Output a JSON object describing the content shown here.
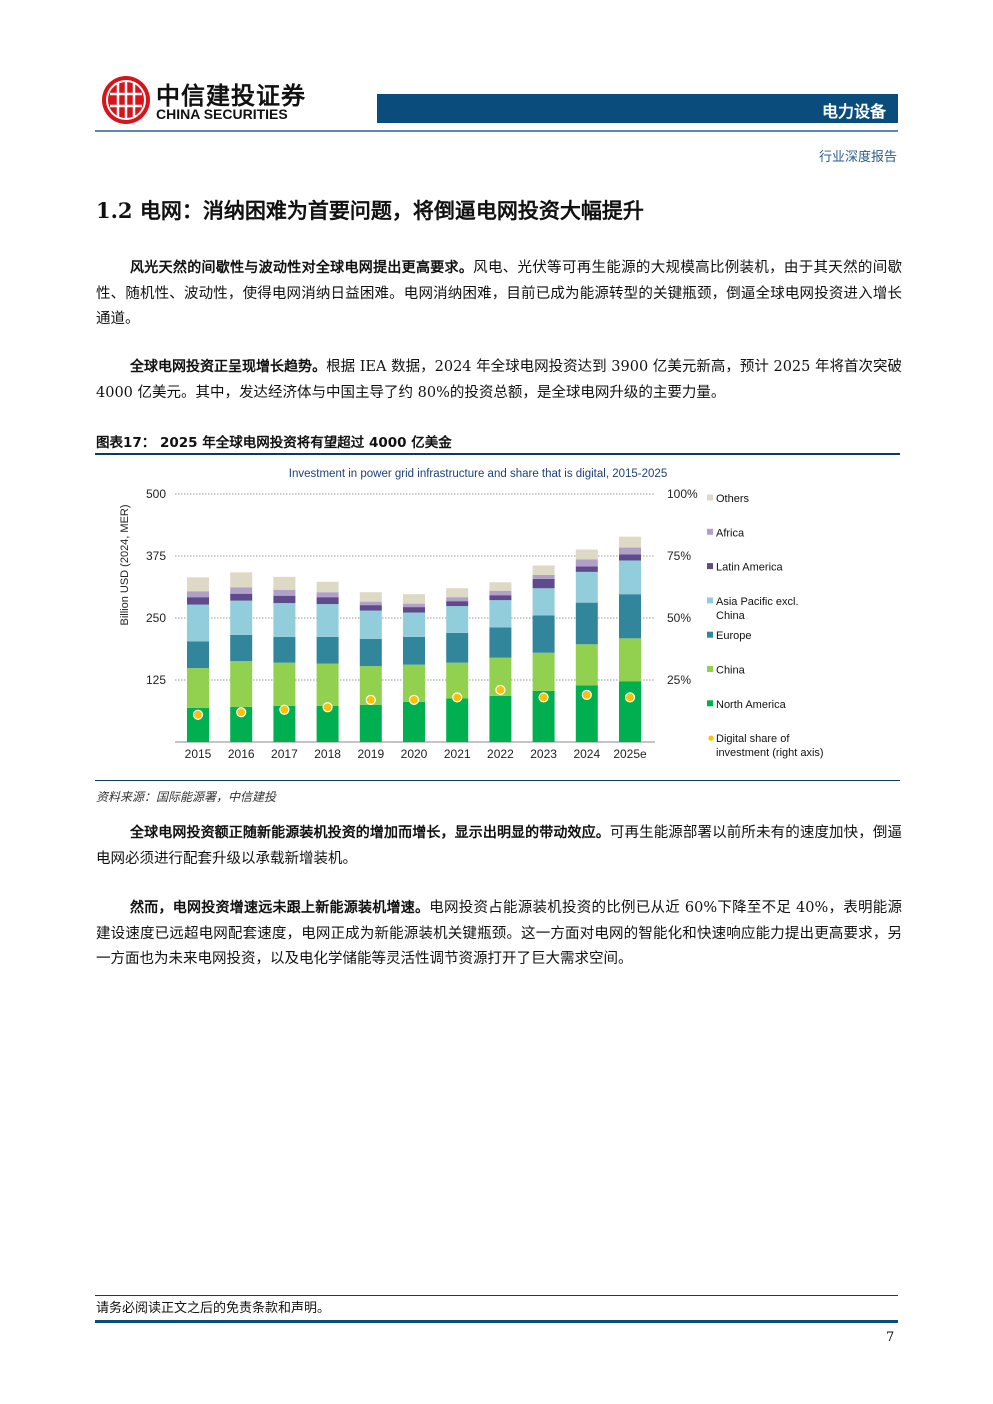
{
  "header": {
    "logo_cn": "中信建投证券",
    "logo_en": "CHINA SECURITIES",
    "sector": "电力设备",
    "report_type": "行业深度报告"
  },
  "section": {
    "title": "1.2  电网：消纳困难为首要问题，将倒逼电网投资大幅提升"
  },
  "paragraphs": [
    {
      "bold": "风光天然的间歇性与波动性对全球电网提出更高要求。",
      "text": "风电、光伏等可再生能源的大规模高比例装机，由于其天然的间歇性、随机性、波动性，使得电网消纳日益困难。电网消纳困难，目前已成为能源转型的关键瓶颈，倒逼全球电网投资进入增长通道。"
    },
    {
      "bold": "全球电网投资正呈现增长趋势。",
      "text": "根据 IEA 数据，2024 年全球电网投资达到 3900 亿美元新高，预计 2025 年将首次突破 4000 亿美元。其中，发达经济体与中国主导了约 80%的投资总额，是全球电网升级的主要力量。"
    },
    {
      "bold": "全球电网投资额正随新能源装机投资的增加而增长，显示出明显的带动效应。",
      "text": "可再生能源部署以前所未有的速度加快，倒逼电网必须进行配套升级以承载新增装机。"
    },
    {
      "bold": "然而，电网投资增速远未跟上新能源装机增速。",
      "text": "电网投资占能源装机投资的比例已从近 60%下降至不足 40%，表明能源建设速度已远超电网配套速度，电网正成为新能源装机关键瓶颈。这一方面对电网的智能化和快速响应能力提出更高要求，另一方面也为未来电网投资，以及电化学储能等灵活性调节资源打开了巨大需求空间。"
    }
  ],
  "figure": {
    "label": "图表17：",
    "title": "2025 年全球电网投资将有望超过 4000 亿美金",
    "source": "资料来源：国际能源署，中信建投"
  },
  "footer": {
    "disclaimer": "请务必阅读正文之后的免责条款和声明。",
    "page": "7"
  },
  "chart_data": {
    "type": "bar",
    "stacked": true,
    "title": "Investment in power grid infrastructure and share that is digital, 2015-2025",
    "ylabel": "Billion USD (2024, MER)",
    "ylim": [
      0,
      500
    ],
    "yticks": [
      "125",
      "250",
      "375",
      "500"
    ],
    "y2lim": [
      0,
      100
    ],
    "y2ticks": [
      "25%",
      "50%",
      "75%",
      "100%"
    ],
    "grid": true,
    "legend": "right",
    "categories": [
      "2015",
      "2016",
      "2017",
      "2018",
      "2019",
      "2020",
      "2021",
      "2022",
      "2023",
      "2024",
      "2025e"
    ],
    "series": [
      {
        "name": "North America",
        "color": "#00b050",
        "values": [
          69,
          71,
          73,
          73,
          75,
          81,
          88,
          93,
          103,
          114,
          122
        ]
      },
      {
        "name": "China",
        "color": "#92d050",
        "values": [
          80,
          92,
          87,
          85,
          78,
          75,
          72,
          77,
          77,
          83,
          87
        ]
      },
      {
        "name": "Europe",
        "color": "#31869b",
        "values": [
          54,
          53,
          52,
          54,
          55,
          56,
          60,
          61,
          75,
          84,
          89
        ]
      },
      {
        "name": "Asia Pacific excl. China",
        "color": "#92cddc",
        "values": [
          74,
          69,
          68,
          66,
          57,
          49,
          54,
          55,
          55,
          62,
          68
        ]
      },
      {
        "name": "Latin America",
        "color": "#5f4b8b",
        "values": [
          15,
          14,
          15,
          14,
          11,
          11,
          10,
          10,
          19,
          11,
          12
        ]
      },
      {
        "name": "Africa",
        "color": "#b1a0c7",
        "values": [
          12,
          13,
          12,
          10,
          7,
          7,
          8,
          9,
          8,
          14,
          14
        ]
      },
      {
        "name": "Others",
        "color": "#ddd9c4",
        "values": [
          28,
          30,
          26,
          21,
          19,
          19,
          18,
          17,
          19,
          20,
          22
        ]
      }
    ],
    "line_series": {
      "name": "Digital share of investment (right axis)",
      "color": "#ffc000",
      "unit": "%",
      "values": [
        11,
        12,
        13,
        14,
        17,
        17,
        18,
        21,
        18,
        19,
        18
      ]
    }
  }
}
